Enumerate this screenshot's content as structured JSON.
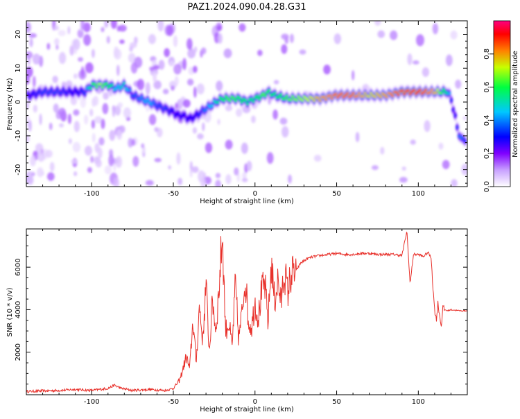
{
  "figure": {
    "title": "PAZ1.2024.090.04.28.G31"
  },
  "chart_data": [
    {
      "type": "heatmap",
      "xlabel": "Height of straight line (km)",
      "ylabel": "Frequency (Hz)",
      "xlim": [
        -140,
        130
      ],
      "ylim": [
        -25,
        24
      ],
      "x_ticks": [
        -100,
        -50,
        0,
        50,
        100
      ],
      "y_ticks": [
        -20,
        -10,
        0,
        10,
        20
      ],
      "ridge": {
        "x": [
          -138,
          -130,
          -120,
          -110,
          -104,
          -100,
          -95,
          -90,
          -85,
          -80,
          -75,
          -70,
          -65,
          -60,
          -55,
          -50,
          -47,
          -44,
          -40,
          -36,
          -33,
          -30,
          -27,
          -24,
          -20,
          -15,
          -10,
          -5,
          0,
          5,
          8,
          12,
          20,
          30,
          40,
          50,
          60,
          70,
          80,
          90,
          100,
          110,
          115,
          118,
          120,
          122,
          124,
          126,
          128,
          130
        ],
        "y": [
          2,
          3,
          3,
          3,
          3,
          5,
          5,
          5,
          4,
          5,
          2,
          1,
          0,
          -1,
          -2,
          -3,
          -4,
          -4,
          -5,
          -4,
          -3,
          -2,
          -1,
          0,
          1,
          1,
          1,
          0,
          1,
          2,
          3,
          2,
          1,
          1,
          1,
          2,
          2,
          2,
          2,
          3,
          3,
          3,
          3,
          3,
          1,
          -3,
          -8,
          -11,
          -11,
          -11
        ],
        "amplitude": [
          0.3,
          0.35,
          0.35,
          0.3,
          0.35,
          0.6,
          0.7,
          0.6,
          0.45,
          0.5,
          0.35,
          0.4,
          0.45,
          0.35,
          0.35,
          0.3,
          0.3,
          0.3,
          0.3,
          0.3,
          0.35,
          0.4,
          0.45,
          0.5,
          0.6,
          0.65,
          0.6,
          0.55,
          0.55,
          0.65,
          0.6,
          0.55,
          0.65,
          0.7,
          0.8,
          0.85,
          0.85,
          0.75,
          0.8,
          0.9,
          0.9,
          0.8,
          0.6,
          0.5,
          0.35,
          0.3,
          0.35,
          0.4,
          0.35,
          0.3
        ]
      },
      "colorbar": {
        "label": "Normalized spectral amplitude",
        "ticks": [
          0.0,
          0.2,
          0.4,
          0.6,
          0.8
        ],
        "colors": [
          "#ffffff",
          "#c8a0ff",
          "#8000ff",
          "#0000ff",
          "#00c8ff",
          "#00ff40",
          "#c8ff00",
          "#ff8000",
          "#ff0000",
          "#ff0080"
        ]
      }
    },
    {
      "type": "line",
      "xlabel": "Height of straight line (km)",
      "ylabel": "SNR (10 * v/v)",
      "xlim": [
        -140,
        130
      ],
      "ylim": [
        0,
        7800
      ],
      "x_ticks": [
        -100,
        -50,
        0,
        50,
        100
      ],
      "y_ticks": [
        2000,
        4000,
        6000
      ],
      "line_color": "#e8302a",
      "series": [
        {
          "x": [
            -140,
            -130,
            -120,
            -110,
            -100,
            -90,
            -86,
            -82,
            -75,
            -65,
            -55,
            -50,
            -46,
            -42,
            -40,
            -38,
            -36,
            -34,
            -32,
            -30,
            -28,
            -26,
            -24,
            -22,
            -20,
            -18,
            -16,
            -14,
            -12,
            -10,
            -8,
            -6,
            -4,
            -2,
            0,
            2,
            4,
            6,
            8,
            10,
            12,
            14,
            16,
            18,
            20,
            22,
            25,
            28,
            32,
            36,
            40,
            45,
            50,
            55,
            60,
            65,
            70,
            75,
            80,
            85,
            90,
            93,
            95,
            97,
            100,
            103,
            106,
            108,
            109,
            110,
            111,
            112,
            113,
            114,
            115,
            116,
            118,
            120,
            125,
            130
          ],
          "y": [
            150,
            180,
            200,
            250,
            200,
            300,
            450,
            300,
            200,
            250,
            200,
            300,
            700,
            1800,
            1200,
            3500,
            1500,
            4200,
            2500,
            5200,
            2000,
            4500,
            3000,
            5000,
            7600,
            3000,
            3400,
            2200,
            5200,
            2600,
            3800,
            5600,
            3400,
            3200,
            4400,
            3600,
            4800,
            5200,
            3400,
            6200,
            4400,
            5400,
            4300,
            5900,
            4800,
            5600,
            5800,
            6200,
            6400,
            6500,
            6550,
            6600,
            6650,
            6600,
            6600,
            6650,
            6650,
            6600,
            6600,
            6600,
            6550,
            7700,
            5200,
            6600,
            6600,
            6500,
            6700,
            6400,
            5000,
            4000,
            3500,
            4300,
            3800,
            3200,
            4100,
            4000,
            3950,
            4000,
            3950,
            3950
          ]
        }
      ]
    }
  ]
}
